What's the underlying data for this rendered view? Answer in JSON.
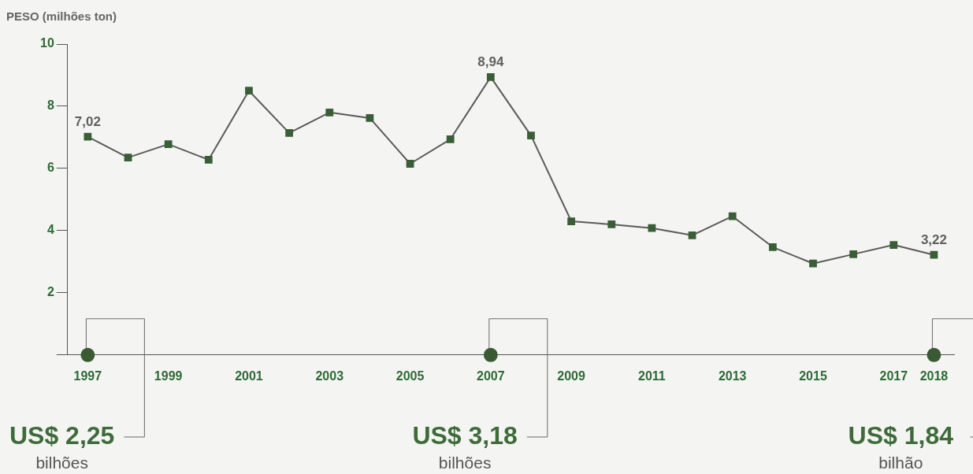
{
  "chart_data": {
    "type": "line",
    "ylabel": "PESO (milhões ton)",
    "categories": [
      "1997",
      null,
      "1999",
      null,
      "2001",
      null,
      "2003",
      null,
      "2005",
      null,
      "2007",
      null,
      "2009",
      null,
      "2011",
      null,
      "2013",
      null,
      "2015",
      null,
      "2017",
      "2018"
    ],
    "series": [
      {
        "color": "#3a5e36",
        "values": [
          7.02,
          6.35,
          6.78,
          6.28,
          8.5,
          7.14,
          7.8,
          7.62,
          6.15,
          6.94,
          8.94,
          7.06,
          4.3,
          4.2,
          4.08,
          3.85,
          4.46,
          3.47,
          2.94,
          3.24,
          3.54,
          3.22
        ],
        "value_labels": [
          "7,02",
          null,
          null,
          null,
          null,
          null,
          null,
          null,
          null,
          null,
          "8,94",
          null,
          null,
          null,
          null,
          null,
          null,
          null,
          null,
          null,
          null,
          "3,22"
        ]
      }
    ],
    "ylim": [
      0,
      10
    ],
    "yticks": [
      {
        "value": 0,
        "label": null
      },
      2,
      4,
      6,
      8,
      10
    ],
    "grid": false,
    "legend": false,
    "marker": "square",
    "line_style": "solid",
    "annotations": [
      {
        "text": "US$ 2,25\nbilhões",
        "x": "1997",
        "y": 0
      },
      {
        "text": "US$ 3,18\nbilhões",
        "x": "2007",
        "y": 0
      },
      {
        "text": "US$ 1,84\nbilhão",
        "x": "2018",
        "y": 0
      }
    ]
  }
}
